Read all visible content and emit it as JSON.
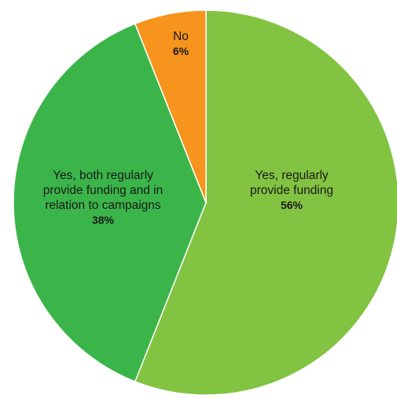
{
  "chart_data": {
    "type": "pie",
    "slices": [
      {
        "label_lines": [
          "Yes, regularly",
          "provide funding"
        ],
        "value": 56,
        "value_label": "56%",
        "color": "#82c341"
      },
      {
        "label_lines": [
          "Yes, both regularly",
          "provide funding and in",
          "relation to campaigns"
        ],
        "value": 38,
        "value_label": "38%",
        "color": "#3bb54a"
      },
      {
        "label_lines": [
          "No"
        ],
        "value": 6,
        "value_label": "6%",
        "color": "#f7941d"
      }
    ],
    "start_angle_deg": 0,
    "direction": "clockwise",
    "legend": "none"
  }
}
